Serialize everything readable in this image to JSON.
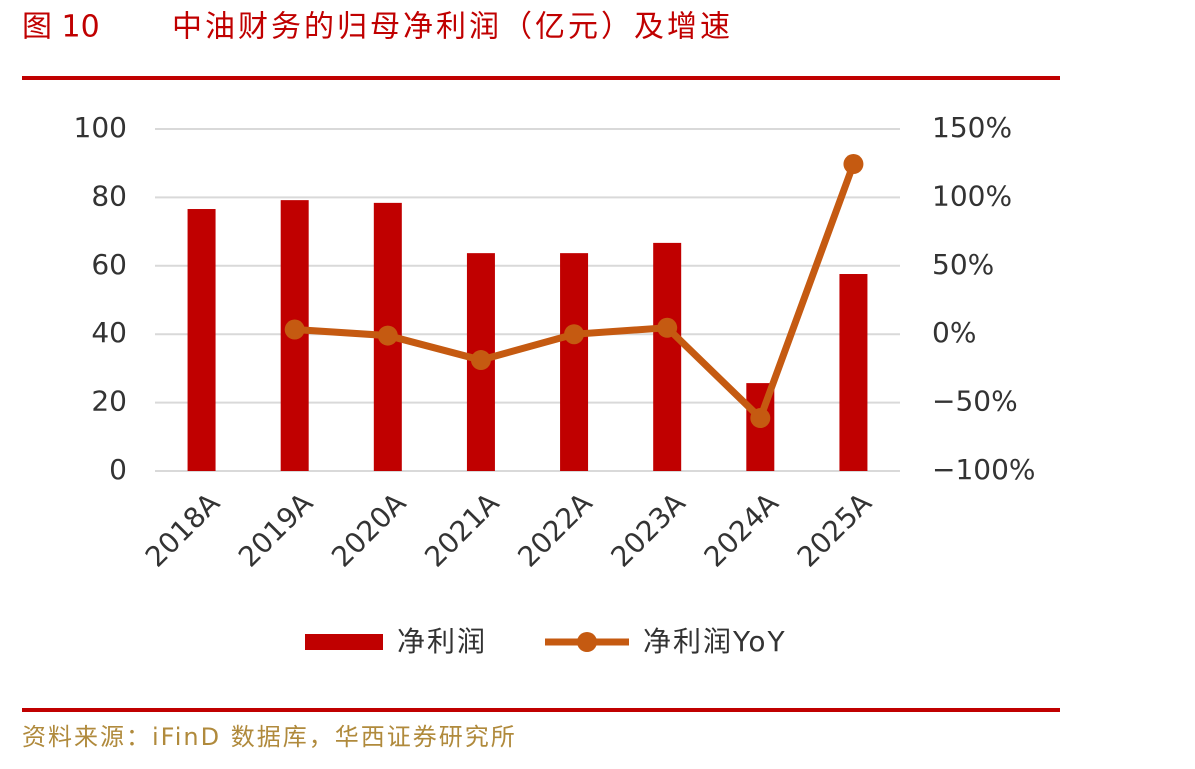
{
  "chart_data": {
    "type": "bar_line",
    "figure_label": "图 10",
    "title": "中油财务的归母净利润（亿元）及增速",
    "source": "资料来源：iFinD 数据库，华西证券研究所",
    "categories": [
      "2018A",
      "2019A",
      "2020A",
      "2021A",
      "2022A",
      "2023A",
      "2024A",
      "2025A"
    ],
    "series": [
      {
        "name": "净利润",
        "type": "bar",
        "color": "#c00000",
        "values": [
          76.6,
          79.2,
          78.4,
          63.7,
          63.7,
          66.7,
          25.7,
          57.6
        ]
      },
      {
        "name": "净利润YoY",
        "type": "line",
        "axis": "y2",
        "color": "#c55a11",
        "values": [
          null,
          3.4,
          -1.0,
          -18.9,
          0.0,
          4.7,
          -61.3,
          124.4
        ]
      }
    ],
    "ylim": [
      0,
      100
    ],
    "yticks": [
      0,
      20,
      40,
      60,
      80,
      100
    ],
    "y2lim": [
      -100,
      150
    ],
    "y2ticks": [
      {
        "value": -100,
        "label": "−100%"
      },
      {
        "value": -50,
        "label": "−50%"
      },
      {
        "value": 0,
        "label": "0%"
      },
      {
        "value": 50,
        "label": "50%"
      },
      {
        "value": 100,
        "label": "100%"
      },
      {
        "value": 150,
        "label": "150%"
      }
    ],
    "grid": true,
    "legend": "bottom"
  }
}
